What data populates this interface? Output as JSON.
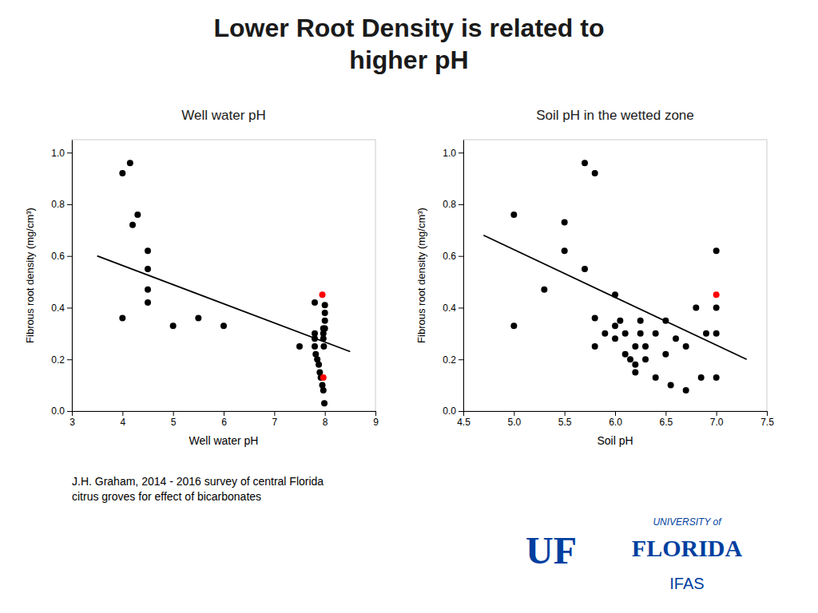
{
  "title": "Lower Root Density is related to\nhigher pH",
  "footnote": "J.H. Graham, 2014 - 2016 survey of central Florida\ncitrus groves for effect of bicarbonates",
  "logo": {
    "color": "#003FA0",
    "texts": [
      "UF",
      "UNIVERSITY of",
      "FLORIDA",
      "IFAS"
    ]
  },
  "chart_data": [
    {
      "type": "scatter",
      "title": "Well water pH",
      "xlabel": "Well water pH",
      "ylabel": "Fibrous root density (mg/cm³)",
      "xlim": [
        3,
        9
      ],
      "ylim": [
        0.0,
        1.05
      ],
      "xticks": [
        3,
        4,
        5,
        6,
        7,
        8,
        9
      ],
      "yticks": [
        {
          "value": 0.0,
          "label": "0.0"
        },
        0.2,
        0.4,
        0.6,
        0.8,
        {
          "value": 1.0,
          "label": "1.0"
        }
      ],
      "grid": false,
      "series": [
        {
          "color": "black",
          "x": [
            4.0,
            4.0,
            4.2,
            4.3,
            4.5,
            4.5,
            4.5,
            4.5,
            5.0,
            5.5,
            6.0,
            7.5,
            7.8,
            7.8,
            7.8,
            7.8,
            7.82,
            7.85,
            7.88,
            7.9,
            7.92,
            7.95,
            7.97,
            7.97,
            7.97,
            7.97,
            7.98,
            7.99,
            8.0,
            8.0,
            8.0
          ],
          "values": [
            0.92,
            0.36,
            0.72,
            0.76,
            0.62,
            0.55,
            0.47,
            0.42,
            0.33,
            0.36,
            0.33,
            0.25,
            0.42,
            0.3,
            0.28,
            0.25,
            0.22,
            0.2,
            0.18,
            0.15,
            0.13,
            0.1,
            0.08,
            0.3,
            0.32,
            0.28,
            0.25,
            0.03,
            0.38,
            0.35,
            0.32
          ]
        },
        {
          "color": "black",
          "x": [
            4.15,
            8.0
          ],
          "values": [
            0.96,
            0.41
          ]
        },
        {
          "color": "red",
          "x": [
            7.95,
            7.97
          ],
          "values": [
            0.45,
            0.13
          ]
        },
        {
          "type": "line",
          "color": "black",
          "x": [
            3.5,
            8.5
          ],
          "values": [
            0.6,
            0.23
          ]
        }
      ]
    },
    {
      "type": "scatter",
      "title": "Soil pH in the wetted zone",
      "xlabel": "Soil pH",
      "ylabel": "Fibrous root density (mg/cm³)",
      "xlim": [
        4.5,
        7.5
      ],
      "ylim": [
        0.0,
        1.05
      ],
      "xticks": [
        4.5,
        {
          "value": 5.0,
          "label": "5.0"
        },
        5.5,
        {
          "value": 6.0,
          "label": "6.0"
        },
        6.5,
        {
          "value": 7.0,
          "label": "7.0"
        },
        7.5
      ],
      "yticks": [
        {
          "value": 0.0,
          "label": "0.0"
        },
        0.2,
        0.4,
        0.6,
        0.8,
        {
          "value": 1.0,
          "label": "1.0"
        }
      ],
      "grid": false,
      "series": [
        {
          "color": "black",
          "x": [
            5.0,
            5.0,
            5.3,
            5.5,
            5.5,
            5.7,
            5.8,
            5.8,
            5.9,
            6.0,
            6.0,
            6.0,
            6.05,
            6.1,
            6.1,
            6.15,
            6.2,
            6.2,
            6.2,
            6.25,
            6.25,
            6.3,
            6.3,
            6.4,
            6.4,
            6.5,
            6.5,
            6.55,
            6.6,
            6.7,
            6.7,
            6.8,
            6.85,
            6.9,
            7.0,
            7.0,
            7.0,
            7.0
          ],
          "values": [
            0.76,
            0.33,
            0.47,
            0.73,
            0.62,
            0.55,
            0.36,
            0.25,
            0.3,
            0.45,
            0.33,
            0.28,
            0.35,
            0.22,
            0.3,
            0.2,
            0.25,
            0.15,
            0.18,
            0.3,
            0.35,
            0.25,
            0.2,
            0.3,
            0.13,
            0.35,
            0.22,
            0.1,
            0.28,
            0.25,
            0.08,
            0.4,
            0.13,
            0.3,
            0.4,
            0.3,
            0.13,
            0.62
          ]
        },
        {
          "color": "black",
          "x": [
            5.7,
            5.8
          ],
          "values": [
            0.96,
            0.92
          ]
        },
        {
          "color": "red",
          "x": [
            7.0
          ],
          "values": [
            0.45
          ]
        },
        {
          "type": "line",
          "color": "black",
          "x": [
            4.7,
            7.3
          ],
          "values": [
            0.68,
            0.2
          ]
        }
      ]
    }
  ]
}
